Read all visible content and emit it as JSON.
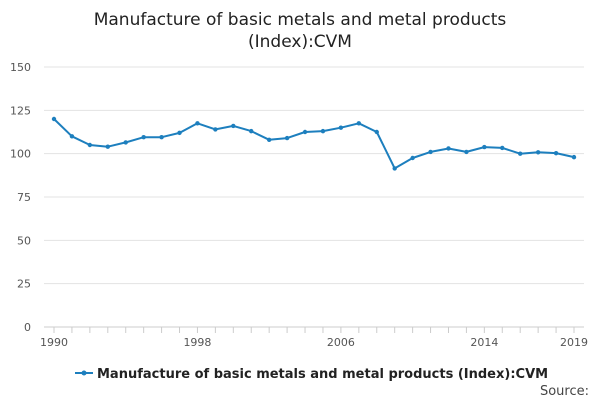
{
  "chart_data": {
    "type": "line",
    "title_lines": [
      "Manufacture of basic metals and metal products",
      "(Index):CVM"
    ],
    "xlabel": "",
    "ylabel": "",
    "x": [
      1990,
      1991,
      1992,
      1993,
      1994,
      1995,
      1996,
      1997,
      1998,
      1999,
      2000,
      2001,
      2002,
      2003,
      2004,
      2005,
      2006,
      2007,
      2008,
      2009,
      2010,
      2011,
      2012,
      2013,
      2014,
      2015,
      2016,
      2017,
      2018,
      2019
    ],
    "series": [
      {
        "name": "Manufacture of basic metals and metal products (Index):CVM",
        "color": "#1d7fbe",
        "values": [
          120,
          110,
          105,
          104,
          106.5,
          109.5,
          109.5,
          112,
          117.5,
          114,
          116,
          113,
          108,
          109,
          112.5,
          113,
          115,
          117.5,
          112.5,
          91.5,
          97.5,
          101,
          103,
          101,
          103.8,
          103.3,
          100,
          100.8,
          100.3,
          98
        ]
      }
    ],
    "x_ticks": [
      1990,
      1998,
      2006,
      2014,
      2019
    ],
    "y_ticks": [
      0,
      25,
      50,
      75,
      100,
      125,
      150
    ],
    "ylim": [
      0,
      150
    ],
    "grid": "horizontal",
    "legend_position": "bottom",
    "source_label": "Source:"
  }
}
